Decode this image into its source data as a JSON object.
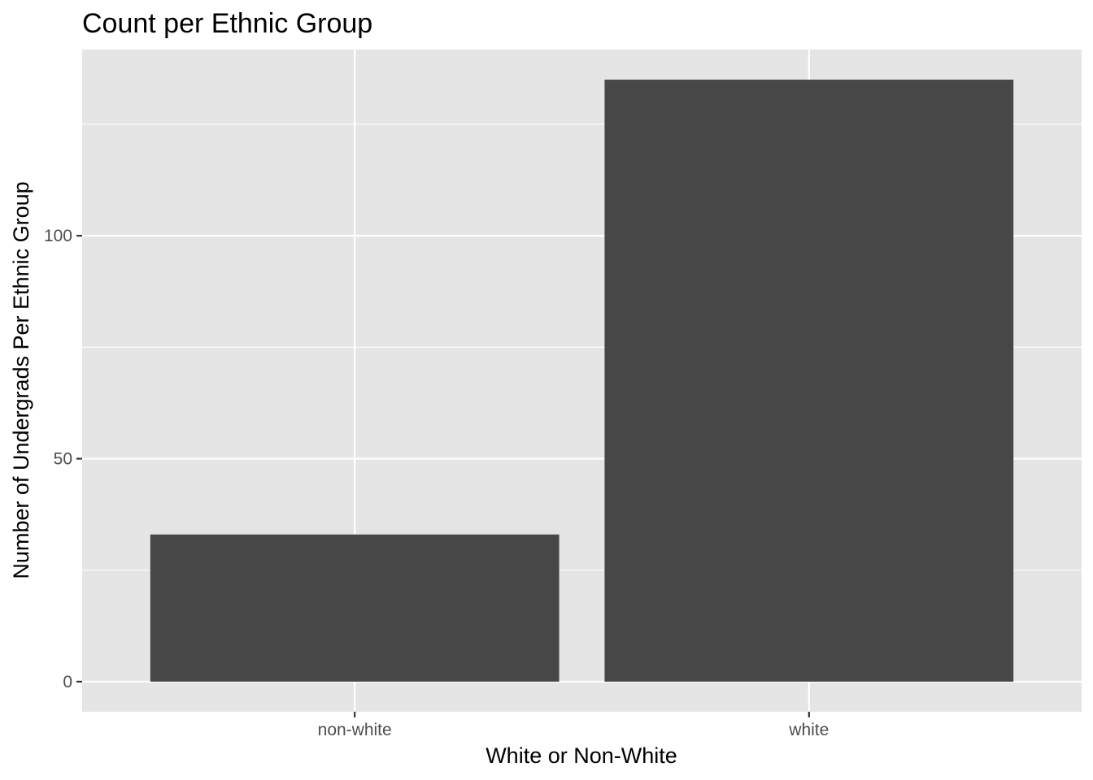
{
  "chart_data": {
    "type": "bar",
    "title": "Count per Ethnic Group",
    "xlabel": "White or Non-White",
    "ylabel": "Number of Undergrads Per Ethnic Group",
    "categories": [
      "non-white",
      "white"
    ],
    "values": [
      33,
      135
    ],
    "ylim": [
      -6.75,
      141.75
    ],
    "yticks": [
      0,
      50,
      100
    ],
    "ytick_labels": [
      "0",
      "50",
      "100"
    ],
    "minor_yticks": [
      25,
      75,
      125
    ],
    "grid": true,
    "legend": "none",
    "colors": {
      "panel_background": "#e5e5e5",
      "grid": "#ffffff",
      "bar_fill": "#474747",
      "tick_text": "#4d4d4d",
      "tick_mark": "#333333"
    }
  }
}
